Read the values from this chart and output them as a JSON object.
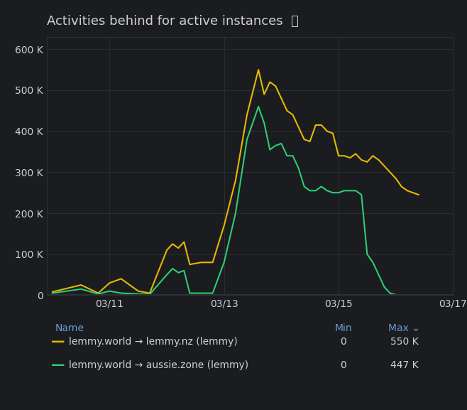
{
  "title": "Activities behind for active instances",
  "background_color": "#1a1c20",
  "plot_bg_color": "#1a1c20",
  "grid_color": "#2e3138",
  "text_color": "#d0d0d0",
  "axis_label_color": "#6b9bd2",
  "title_fontsize": 13,
  "ylabel_ticks": [
    "0",
    "100 K",
    "200 K",
    "300 K",
    "400 K",
    "500 K",
    "600 K"
  ],
  "ylim": [
    0,
    630000
  ],
  "legend": [
    {
      "label": "lemmy.world → lemmy.nz (lemmy)",
      "color": "#e6b800",
      "min": "0",
      "max": "550 K"
    },
    {
      "label": "lemmy.world → aussie.zone (lemmy)",
      "color": "#2ecc71",
      "min": "0",
      "max": "447 K"
    }
  ],
  "x_ticks": [
    "03/11",
    "03/13",
    "03/15",
    "03/17"
  ],
  "series": {
    "lemmy_nz": {
      "color": "#e6b800",
      "points": [
        [
          0.0,
          8000
        ],
        [
          0.5,
          25000
        ],
        [
          0.8,
          5000
        ],
        [
          1.0,
          30000
        ],
        [
          1.2,
          40000
        ],
        [
          1.5,
          10000
        ],
        [
          1.7,
          5000
        ],
        [
          2.0,
          110000
        ],
        [
          2.1,
          125000
        ],
        [
          2.2,
          115000
        ],
        [
          2.3,
          130000
        ],
        [
          2.4,
          75000
        ],
        [
          2.6,
          80000
        ],
        [
          2.8,
          80000
        ],
        [
          3.0,
          170000
        ],
        [
          3.2,
          280000
        ],
        [
          3.4,
          440000
        ],
        [
          3.6,
          550000
        ],
        [
          3.7,
          490000
        ],
        [
          3.8,
          520000
        ],
        [
          3.9,
          510000
        ],
        [
          4.0,
          480000
        ],
        [
          4.1,
          450000
        ],
        [
          4.2,
          440000
        ],
        [
          4.3,
          410000
        ],
        [
          4.4,
          380000
        ],
        [
          4.5,
          375000
        ],
        [
          4.6,
          415000
        ],
        [
          4.7,
          415000
        ],
        [
          4.8,
          400000
        ],
        [
          4.9,
          395000
        ],
        [
          5.0,
          340000
        ],
        [
          5.1,
          340000
        ],
        [
          5.2,
          335000
        ],
        [
          5.3,
          345000
        ],
        [
          5.4,
          330000
        ],
        [
          5.5,
          325000
        ],
        [
          5.6,
          340000
        ],
        [
          5.7,
          330000
        ],
        [
          5.8,
          315000
        ],
        [
          5.9,
          300000
        ],
        [
          6.0,
          285000
        ],
        [
          6.1,
          265000
        ],
        [
          6.2,
          255000
        ],
        [
          6.3,
          250000
        ],
        [
          6.4,
          245000
        ]
      ]
    },
    "aussie_zone": {
      "color": "#2ecc71",
      "points": [
        [
          0.0,
          5000
        ],
        [
          0.5,
          15000
        ],
        [
          0.8,
          3000
        ],
        [
          1.0,
          10000
        ],
        [
          1.2,
          5000
        ],
        [
          1.5,
          3000
        ],
        [
          1.7,
          2000
        ],
        [
          2.0,
          50000
        ],
        [
          2.1,
          65000
        ],
        [
          2.2,
          55000
        ],
        [
          2.3,
          60000
        ],
        [
          2.4,
          5000
        ],
        [
          2.6,
          5000
        ],
        [
          2.8,
          5000
        ],
        [
          3.0,
          80000
        ],
        [
          3.2,
          200000
        ],
        [
          3.4,
          380000
        ],
        [
          3.6,
          460000
        ],
        [
          3.7,
          420000
        ],
        [
          3.8,
          355000
        ],
        [
          3.9,
          365000
        ],
        [
          4.0,
          370000
        ],
        [
          4.1,
          340000
        ],
        [
          4.2,
          340000
        ],
        [
          4.3,
          310000
        ],
        [
          4.4,
          265000
        ],
        [
          4.5,
          255000
        ],
        [
          4.6,
          255000
        ],
        [
          4.7,
          265000
        ],
        [
          4.8,
          255000
        ],
        [
          4.9,
          250000
        ],
        [
          5.0,
          250000
        ],
        [
          5.1,
          255000
        ],
        [
          5.2,
          255000
        ],
        [
          5.3,
          255000
        ],
        [
          5.4,
          245000
        ],
        [
          5.5,
          100000
        ],
        [
          5.6,
          80000
        ],
        [
          5.7,
          50000
        ],
        [
          5.8,
          20000
        ],
        [
          5.9,
          5000
        ],
        [
          6.0,
          1000
        ],
        [
          6.1,
          500
        ],
        [
          6.2,
          200
        ],
        [
          6.3,
          100
        ],
        [
          6.4,
          50
        ]
      ]
    }
  }
}
